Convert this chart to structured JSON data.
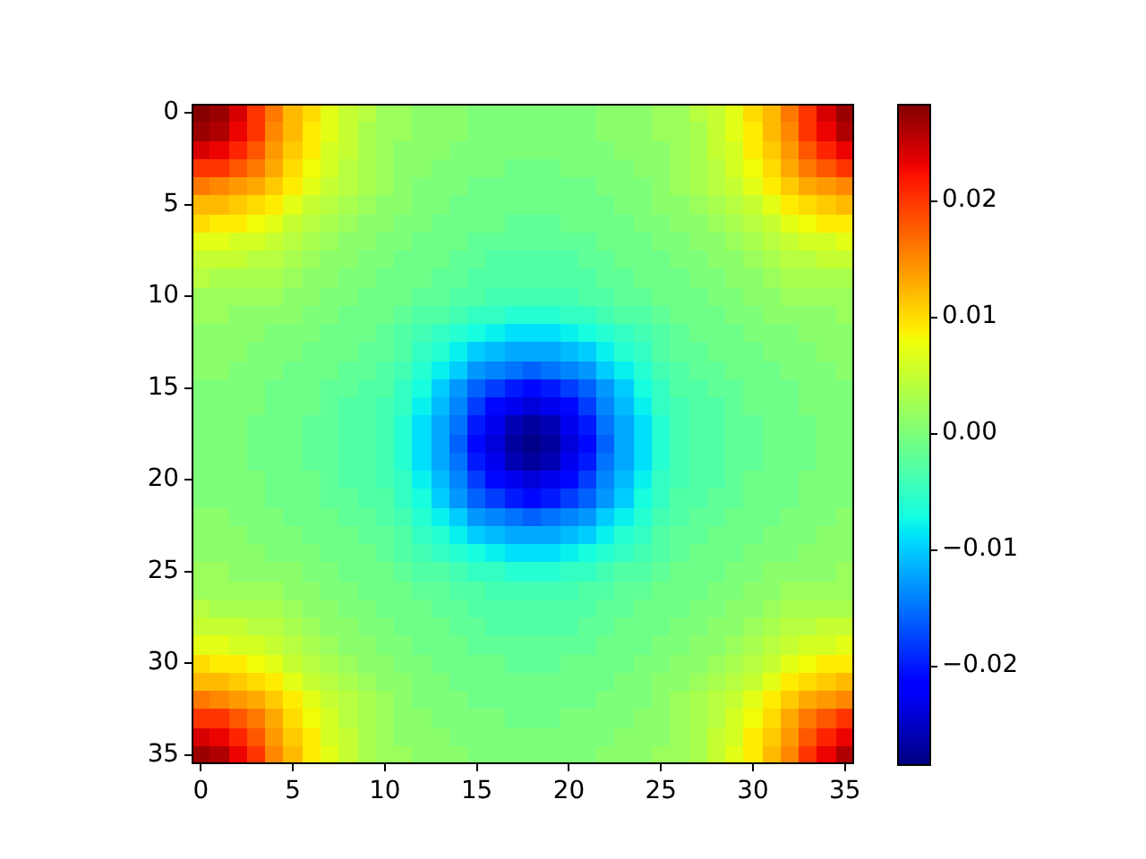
{
  "chart_data": {
    "type": "heatmap",
    "categories": [
      "0",
      null,
      null,
      null,
      null,
      "5",
      null,
      null,
      null,
      null,
      "10",
      null,
      null,
      null,
      null,
      "15",
      null,
      null,
      null,
      null,
      "20",
      null,
      null,
      null,
      null,
      "25",
      null,
      null,
      null,
      null,
      "30",
      null,
      null,
      null,
      null,
      "35"
    ],
    "y_categories": [
      "0",
      null,
      null,
      null,
      null,
      "5",
      null,
      null,
      null,
      null,
      "10",
      null,
      null,
      null,
      null,
      "15",
      null,
      null,
      null,
      null,
      "20",
      null,
      null,
      null,
      null,
      "25",
      null,
      null,
      null,
      null,
      "30",
      null,
      null,
      null,
      null,
      "35"
    ],
    "clim": [
      -0.0285,
      0.0283
    ],
    "cticks": [
      {
        "value": -0.02,
        "label": "−0.02"
      },
      {
        "value": -0.01,
        "label": "−0.01"
      },
      {
        "value": 0,
        "label": "0.00"
      },
      0.01,
      0.02
    ],
    "cells": [
      [
        0.028,
        0.027,
        0.024,
        0.02,
        0.016,
        0.012,
        0.01,
        0.007,
        0.005,
        0.004,
        0.002,
        0.002,
        0.001,
        0.001,
        0.001,
        0,
        0,
        0,
        0,
        0,
        0,
        0,
        0.001,
        0.001,
        0.001,
        0.002,
        0.002,
        0.004,
        0.005,
        0.007,
        0.01,
        0.012,
        0.016,
        0.02,
        0.024,
        0.027
      ],
      [
        0.027,
        0.026,
        0.023,
        0.02,
        0.015,
        0.012,
        0.009,
        0.007,
        0.005,
        0.003,
        0.002,
        0.002,
        0.001,
        0.001,
        0.001,
        0,
        0,
        0,
        0,
        0,
        0,
        0,
        0.001,
        0.001,
        0.001,
        0.002,
        0.002,
        0.003,
        0.005,
        0.007,
        0.009,
        0.012,
        0.015,
        0.02,
        0.023,
        0.026
      ],
      [
        0.024,
        0.023,
        0.021,
        0.018,
        0.014,
        0.011,
        0.009,
        0.006,
        0.005,
        0.003,
        0.002,
        0.001,
        0.001,
        0.001,
        0,
        0,
        0,
        0,
        0,
        0,
        0,
        0,
        0,
        0.001,
        0.001,
        0.001,
        0.002,
        0.003,
        0.005,
        0.006,
        0.009,
        0.011,
        0.014,
        0.018,
        0.021,
        0.023
      ],
      [
        0.02,
        0.02,
        0.018,
        0.016,
        0.013,
        0.01,
        0.008,
        0.006,
        0.004,
        0.003,
        0.002,
        0.001,
        0.001,
        0,
        0,
        0,
        0,
        -0.001,
        -0.001,
        -0.001,
        0,
        0,
        0,
        0,
        0.001,
        0.001,
        0.002,
        0.003,
        0.004,
        0.006,
        0.008,
        0.01,
        0.013,
        0.016,
        0.018,
        0.02
      ],
      [
        0.016,
        0.015,
        0.014,
        0.013,
        0.011,
        0.009,
        0.007,
        0.005,
        0.004,
        0.003,
        0.002,
        0.001,
        0,
        0,
        0,
        -0.001,
        -0.001,
        -0.001,
        -0.001,
        -0.001,
        -0.001,
        -0.001,
        0,
        0,
        0,
        0.001,
        0.002,
        0.003,
        0.004,
        0.005,
        0.007,
        0.009,
        0.011,
        0.013,
        0.014,
        0.015
      ],
      [
        0.012,
        0.012,
        0.011,
        0.01,
        0.009,
        0.007,
        0.005,
        0.004,
        0.003,
        0.002,
        0.001,
        0.001,
        0,
        0,
        -0.001,
        -0.001,
        -0.001,
        -0.001,
        -0.001,
        -0.001,
        -0.001,
        -0.001,
        -0.001,
        0,
        0,
        0.001,
        0.001,
        0.002,
        0.003,
        0.004,
        0.005,
        0.007,
        0.009,
        0.01,
        0.011,
        0.012
      ],
      [
        0.01,
        0.009,
        0.009,
        0.008,
        0.007,
        0.005,
        0.004,
        0.003,
        0.002,
        0.001,
        0.001,
        0,
        0,
        -0.001,
        -0.001,
        -0.001,
        -0.001,
        -0.002,
        -0.002,
        -0.002,
        -0.001,
        -0.001,
        -0.001,
        -0.001,
        0,
        0,
        0.001,
        0.001,
        0.002,
        0.003,
        0.004,
        0.005,
        0.007,
        0.008,
        0.009,
        0.009
      ],
      [
        0.007,
        0.007,
        0.006,
        0.006,
        0.005,
        0.004,
        0.003,
        0.002,
        0.001,
        0.001,
        0,
        0,
        -0.001,
        -0.001,
        -0.001,
        -0.002,
        -0.002,
        -0.002,
        -0.002,
        -0.002,
        -0.002,
        -0.002,
        -0.001,
        -0.001,
        -0.001,
        0,
        0,
        0.001,
        0.001,
        0.002,
        0.003,
        0.004,
        0.005,
        0.006,
        0.006,
        0.007
      ],
      [
        0.005,
        0.005,
        0.005,
        0.004,
        0.004,
        0.003,
        0.002,
        0.001,
        0.001,
        0,
        0,
        -0.001,
        -0.001,
        -0.001,
        -0.002,
        -0.002,
        -0.003,
        -0.003,
        -0.003,
        -0.003,
        -0.003,
        -0.002,
        -0.002,
        -0.001,
        -0.001,
        -0.001,
        0,
        0,
        0.001,
        0.001,
        0.002,
        0.003,
        0.004,
        0.004,
        0.005,
        0.005
      ],
      [
        0.004,
        0.003,
        0.003,
        0.003,
        0.003,
        0.002,
        0.001,
        0.001,
        0,
        0,
        -0.001,
        -0.001,
        -0.001,
        -0.002,
        -0.002,
        -0.003,
        -0.003,
        -0.003,
        -0.003,
        -0.003,
        -0.003,
        -0.003,
        -0.002,
        -0.002,
        -0.001,
        -0.001,
        -0.001,
        0,
        0,
        0.001,
        0.001,
        0.002,
        0.003,
        0.003,
        0.003,
        0.003
      ],
      [
        0.002,
        0.002,
        0.002,
        0.002,
        0.002,
        0.001,
        0.001,
        0,
        0,
        -0.001,
        -0.001,
        -0.001,
        -0.002,
        -0.002,
        -0.003,
        -0.003,
        -0.004,
        -0.004,
        -0.004,
        -0.004,
        -0.004,
        -0.003,
        -0.003,
        -0.002,
        -0.002,
        -0.001,
        -0.001,
        -0.001,
        0,
        0,
        0.001,
        0.001,
        0.002,
        0.002,
        0.002,
        0.002
      ],
      [
        0.002,
        0.002,
        0.001,
        0.001,
        0.001,
        0.001,
        0,
        0,
        -0.001,
        -0.001,
        -0.001,
        -0.002,
        -0.003,
        -0.003,
        -0.004,
        -0.005,
        -0.005,
        -0.006,
        -0.006,
        -0.006,
        -0.005,
        -0.005,
        -0.004,
        -0.003,
        -0.003,
        -0.002,
        -0.001,
        -0.001,
        -0.001,
        0,
        0,
        0.001,
        0.001,
        0.001,
        0.001,
        0.002
      ],
      [
        0.001,
        0.001,
        0.001,
        0.001,
        0,
        0,
        0,
        -0.001,
        -0.001,
        -0.001,
        -0.002,
        -0.003,
        -0.004,
        -0.005,
        -0.006,
        -0.007,
        -0.008,
        -0.009,
        -0.009,
        -0.009,
        -0.008,
        -0.007,
        -0.006,
        -0.005,
        -0.004,
        -0.003,
        -0.002,
        -0.001,
        -0.001,
        -0.001,
        0,
        0,
        0,
        0.001,
        0.001,
        0.001
      ],
      [
        0.001,
        0.001,
        0.001,
        0,
        0,
        0,
        -0.001,
        -0.001,
        -0.001,
        -0.002,
        -0.002,
        -0.003,
        -0.005,
        -0.006,
        -0.008,
        -0.01,
        -0.011,
        -0.012,
        -0.012,
        -0.012,
        -0.011,
        -0.01,
        -0.008,
        -0.006,
        -0.005,
        -0.003,
        -0.002,
        -0.002,
        -0.001,
        -0.001,
        -0.001,
        0,
        0,
        0,
        0.001,
        0.001
      ],
      [
        0.001,
        0.001,
        0,
        0,
        0,
        -0.001,
        -0.001,
        -0.001,
        -0.002,
        -0.002,
        -0.003,
        -0.004,
        -0.006,
        -0.008,
        -0.01,
        -0.013,
        -0.014,
        -0.015,
        -0.016,
        -0.015,
        -0.014,
        -0.013,
        -0.01,
        -0.008,
        -0.006,
        -0.004,
        -0.003,
        -0.002,
        -0.002,
        -0.001,
        -0.001,
        -0.001,
        0,
        0,
        0,
        0.001
      ],
      [
        0,
        0,
        0,
        0,
        -0.001,
        -0.001,
        -0.001,
        -0.002,
        -0.002,
        -0.003,
        -0.003,
        -0.005,
        -0.007,
        -0.01,
        -0.013,
        -0.016,
        -0.018,
        -0.02,
        -0.021,
        -0.02,
        -0.018,
        -0.016,
        -0.013,
        -0.01,
        -0.007,
        -0.005,
        -0.003,
        -0.003,
        -0.002,
        -0.002,
        -0.001,
        -0.001,
        -0.001,
        0,
        0,
        0
      ],
      [
        0,
        0,
        0,
        0,
        -0.001,
        -0.001,
        -0.001,
        -0.002,
        -0.003,
        -0.003,
        -0.004,
        -0.005,
        -0.008,
        -0.011,
        -0.014,
        -0.018,
        -0.021,
        -0.023,
        -0.024,
        -0.023,
        -0.021,
        -0.018,
        -0.014,
        -0.011,
        -0.008,
        -0.005,
        -0.004,
        -0.003,
        -0.003,
        -0.002,
        -0.001,
        -0.001,
        -0.001,
        0,
        0,
        0
      ],
      [
        0,
        0,
        0,
        -0.001,
        -0.001,
        -0.001,
        -0.002,
        -0.002,
        -0.003,
        -0.003,
        -0.004,
        -0.006,
        -0.009,
        -0.012,
        -0.015,
        -0.02,
        -0.023,
        -0.026,
        -0.027,
        -0.026,
        -0.023,
        -0.02,
        -0.015,
        -0.012,
        -0.009,
        -0.006,
        -0.004,
        -0.003,
        -0.003,
        -0.002,
        -0.002,
        -0.001,
        -0.001,
        -0.001,
        0,
        0
      ],
      [
        0,
        0,
        0,
        -0.001,
        -0.001,
        -0.001,
        -0.002,
        -0.002,
        -0.003,
        -0.003,
        -0.004,
        -0.006,
        -0.009,
        -0.012,
        -0.016,
        -0.021,
        -0.024,
        -0.027,
        -0.028,
        -0.027,
        -0.024,
        -0.021,
        -0.016,
        -0.012,
        -0.009,
        -0.006,
        -0.004,
        -0.003,
        -0.003,
        -0.002,
        -0.002,
        -0.001,
        -0.001,
        -0.001,
        0,
        0
      ],
      [
        0,
        0,
        0,
        -0.001,
        -0.001,
        -0.001,
        -0.002,
        -0.002,
        -0.003,
        -0.003,
        -0.004,
        -0.006,
        -0.009,
        -0.012,
        -0.015,
        -0.02,
        -0.023,
        -0.026,
        -0.027,
        -0.026,
        -0.023,
        -0.02,
        -0.015,
        -0.012,
        -0.009,
        -0.006,
        -0.004,
        -0.003,
        -0.003,
        -0.002,
        -0.002,
        -0.001,
        -0.001,
        -0.001,
        0,
        0
      ],
      [
        0,
        0,
        0,
        0,
        -0.001,
        -0.001,
        -0.001,
        -0.002,
        -0.003,
        -0.003,
        -0.004,
        -0.005,
        -0.008,
        -0.011,
        -0.014,
        -0.018,
        -0.021,
        -0.023,
        -0.024,
        -0.023,
        -0.021,
        -0.018,
        -0.014,
        -0.011,
        -0.008,
        -0.005,
        -0.004,
        -0.003,
        -0.003,
        -0.002,
        -0.001,
        -0.001,
        -0.001,
        0,
        0,
        0
      ],
      [
        0,
        0,
        0,
        0,
        -0.001,
        -0.001,
        -0.001,
        -0.002,
        -0.002,
        -0.003,
        -0.003,
        -0.005,
        -0.007,
        -0.01,
        -0.013,
        -0.016,
        -0.018,
        -0.02,
        -0.021,
        -0.02,
        -0.018,
        -0.016,
        -0.013,
        -0.01,
        -0.007,
        -0.005,
        -0.003,
        -0.003,
        -0.002,
        -0.002,
        -0.001,
        -0.001,
        -0.001,
        0,
        0,
        0
      ],
      [
        0.001,
        0.001,
        0,
        0,
        0,
        -0.001,
        -0.001,
        -0.001,
        -0.002,
        -0.002,
        -0.003,
        -0.004,
        -0.006,
        -0.008,
        -0.01,
        -0.013,
        -0.014,
        -0.015,
        -0.016,
        -0.015,
        -0.014,
        -0.013,
        -0.01,
        -0.008,
        -0.006,
        -0.004,
        -0.003,
        -0.002,
        -0.002,
        -0.001,
        -0.001,
        -0.001,
        0,
        0,
        0,
        0.001
      ],
      [
        0.001,
        0.001,
        0.001,
        0,
        0,
        0,
        -0.001,
        -0.001,
        -0.001,
        -0.002,
        -0.002,
        -0.003,
        -0.005,
        -0.006,
        -0.008,
        -0.01,
        -0.011,
        -0.012,
        -0.012,
        -0.012,
        -0.011,
        -0.01,
        -0.008,
        -0.006,
        -0.005,
        -0.003,
        -0.002,
        -0.002,
        -0.001,
        -0.001,
        -0.001,
        0,
        0,
        0,
        0.001,
        0.001
      ],
      [
        0.001,
        0.001,
        0.001,
        0.001,
        0,
        0,
        0,
        -0.001,
        -0.001,
        -0.001,
        -0.002,
        -0.003,
        -0.004,
        -0.005,
        -0.006,
        -0.007,
        -0.008,
        -0.009,
        -0.009,
        -0.009,
        -0.008,
        -0.007,
        -0.006,
        -0.005,
        -0.004,
        -0.003,
        -0.002,
        -0.001,
        -0.001,
        -0.001,
        0,
        0,
        0,
        0.001,
        0.001,
        0.001
      ],
      [
        0.002,
        0.002,
        0.001,
        0.001,
        0.001,
        0.001,
        0,
        0,
        -0.001,
        -0.001,
        -0.001,
        -0.002,
        -0.003,
        -0.003,
        -0.004,
        -0.005,
        -0.005,
        -0.006,
        -0.006,
        -0.006,
        -0.005,
        -0.005,
        -0.004,
        -0.003,
        -0.003,
        -0.002,
        -0.001,
        -0.001,
        -0.001,
        0,
        0,
        0.001,
        0.001,
        0.001,
        0.001,
        0.002
      ],
      [
        0.002,
        0.002,
        0.002,
        0.002,
        0.002,
        0.001,
        0.001,
        0,
        0,
        -0.001,
        -0.001,
        -0.001,
        -0.002,
        -0.002,
        -0.003,
        -0.003,
        -0.004,
        -0.004,
        -0.004,
        -0.004,
        -0.004,
        -0.003,
        -0.003,
        -0.002,
        -0.002,
        -0.001,
        -0.001,
        -0.001,
        0,
        0,
        0.001,
        0.001,
        0.002,
        0.002,
        0.002,
        0.002
      ],
      [
        0.004,
        0.003,
        0.003,
        0.003,
        0.003,
        0.002,
        0.001,
        0.001,
        0,
        0,
        -0.001,
        -0.001,
        -0.001,
        -0.002,
        -0.002,
        -0.003,
        -0.003,
        -0.003,
        -0.003,
        -0.003,
        -0.003,
        -0.003,
        -0.002,
        -0.002,
        -0.001,
        -0.001,
        -0.001,
        0,
        0,
        0.001,
        0.001,
        0.002,
        0.003,
        0.003,
        0.003,
        0.003
      ],
      [
        0.005,
        0.005,
        0.005,
        0.004,
        0.004,
        0.003,
        0.002,
        0.001,
        0.001,
        0,
        0,
        -0.001,
        -0.001,
        -0.001,
        -0.002,
        -0.002,
        -0.003,
        -0.003,
        -0.003,
        -0.003,
        -0.003,
        -0.002,
        -0.002,
        -0.001,
        -0.001,
        -0.001,
        0,
        0,
        0.001,
        0.001,
        0.002,
        0.003,
        0.004,
        0.004,
        0.005,
        0.005
      ],
      [
        0.007,
        0.007,
        0.006,
        0.006,
        0.005,
        0.004,
        0.003,
        0.002,
        0.001,
        0.001,
        0,
        0,
        -0.001,
        -0.001,
        -0.001,
        -0.002,
        -0.002,
        -0.002,
        -0.002,
        -0.002,
        -0.002,
        -0.002,
        -0.001,
        -0.001,
        -0.001,
        0,
        0,
        0.001,
        0.001,
        0.002,
        0.003,
        0.004,
        0.005,
        0.006,
        0.006,
        0.007
      ],
      [
        0.01,
        0.009,
        0.009,
        0.008,
        0.007,
        0.005,
        0.004,
        0.003,
        0.002,
        0.001,
        0.001,
        0,
        0,
        -0.001,
        -0.001,
        -0.001,
        -0.001,
        -0.002,
        -0.002,
        -0.002,
        -0.001,
        -0.001,
        -0.001,
        -0.001,
        0,
        0,
        0.001,
        0.001,
        0.002,
        0.003,
        0.004,
        0.005,
        0.007,
        0.008,
        0.009,
        0.009
      ],
      [
        0.012,
        0.012,
        0.011,
        0.01,
        0.009,
        0.007,
        0.005,
        0.004,
        0.003,
        0.002,
        0.001,
        0.001,
        0,
        0,
        -0.001,
        -0.001,
        -0.001,
        -0.001,
        -0.001,
        -0.001,
        -0.001,
        -0.001,
        -0.001,
        0,
        0,
        0.001,
        0.001,
        0.002,
        0.003,
        0.004,
        0.005,
        0.007,
        0.009,
        0.01,
        0.011,
        0.012
      ],
      [
        0.016,
        0.015,
        0.014,
        0.013,
        0.011,
        0.009,
        0.007,
        0.005,
        0.004,
        0.003,
        0.002,
        0.001,
        0,
        0,
        0,
        -0.001,
        -0.001,
        -0.001,
        -0.001,
        -0.001,
        -0.001,
        -0.001,
        0,
        0,
        0,
        0.001,
        0.002,
        0.003,
        0.004,
        0.005,
        0.007,
        0.009,
        0.011,
        0.013,
        0.014,
        0.015
      ],
      [
        0.02,
        0.02,
        0.018,
        0.016,
        0.013,
        0.01,
        0.008,
        0.006,
        0.004,
        0.003,
        0.002,
        0.001,
        0.001,
        0,
        0,
        0,
        0,
        -0.001,
        -0.001,
        -0.001,
        0,
        0,
        0,
        0,
        0.001,
        0.001,
        0.002,
        0.003,
        0.004,
        0.006,
        0.008,
        0.01,
        0.013,
        0.016,
        0.018,
        0.02
      ],
      [
        0.024,
        0.023,
        0.021,
        0.018,
        0.014,
        0.011,
        0.009,
        0.006,
        0.005,
        0.003,
        0.002,
        0.001,
        0.001,
        0.001,
        0,
        0,
        0,
        0,
        0,
        0,
        0,
        0,
        0,
        0.001,
        0.001,
        0.001,
        0.002,
        0.003,
        0.005,
        0.006,
        0.009,
        0.011,
        0.014,
        0.018,
        0.021,
        0.023
      ],
      [
        0.027,
        0.026,
        0.023,
        0.02,
        0.015,
        0.012,
        0.009,
        0.007,
        0.005,
        0.003,
        0.002,
        0.002,
        0.001,
        0.001,
        0.001,
        0,
        0,
        0,
        0,
        0,
        0,
        0,
        0.001,
        0.001,
        0.001,
        0.002,
        0.002,
        0.003,
        0.005,
        0.007,
        0.009,
        0.012,
        0.015,
        0.02,
        0.023,
        0.026
      ]
    ]
  }
}
